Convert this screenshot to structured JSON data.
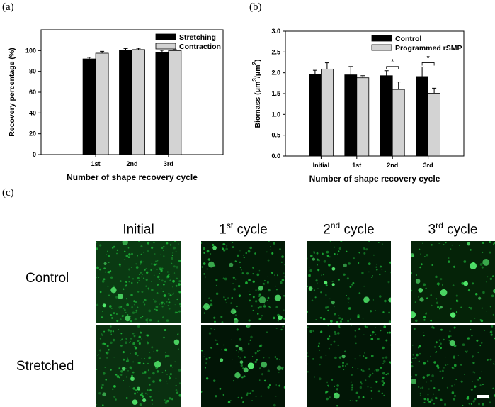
{
  "panels": {
    "a": "(a)",
    "b": "(b)",
    "c": "(c)"
  },
  "chart_data": [
    {
      "type": "bar",
      "title": "",
      "xlabel": "Number of shape recovery cycle",
      "ylabel": "Recovery percentage (%)",
      "ylim": [
        0,
        120
      ],
      "yticks": [
        "0",
        "20",
        "40",
        "60",
        "80",
        "100"
      ],
      "categories": [
        "1st",
        "2nd",
        "3rd"
      ],
      "legend_position": "top-right",
      "series": [
        {
          "name": "Stretching",
          "color": "#000000",
          "values": [
            92,
            100.5,
            98.5
          ],
          "errors": [
            1.5,
            1.5,
            1.8
          ]
        },
        {
          "name": "Contraction",
          "color": "#d3d3d3",
          "values": [
            97.5,
            101,
            100
          ],
          "errors": [
            1.8,
            1.2,
            0.8
          ]
        }
      ]
    },
    {
      "type": "bar",
      "title": "",
      "xlabel": "Number of shape recovery cycle",
      "ylabel_main": "Biomass (μm",
      "ylabel_sup1": "3",
      "ylabel_mid": "/μm",
      "ylabel_sup2": "2",
      "ylabel_end": ")",
      "ylim": [
        0,
        3.0
      ],
      "yticks": [
        "0.0",
        "0.5",
        "1.0",
        "1.5",
        "2.0",
        "2.5",
        "3.0"
      ],
      "categories": [
        "Initial",
        "1st",
        "2nd",
        "3rd"
      ],
      "legend_position": "top-right",
      "series": [
        {
          "name": "Control",
          "color": "#000000",
          "values": [
            1.97,
            1.95,
            1.93,
            1.91
          ],
          "errors": [
            0.09,
            0.2,
            0.12,
            0.23
          ]
        },
        {
          "name": "Programmed rSMP",
          "color": "#d3d3d3",
          "values": [
            2.09,
            1.88,
            1.6,
            1.51
          ],
          "errors": [
            0.15,
            0.05,
            0.18,
            0.12
          ]
        }
      ],
      "significance": [
        {
          "category": "2nd",
          "label": "*"
        },
        {
          "category": "3rd",
          "label": "*"
        }
      ]
    }
  ],
  "micrographs": {
    "columns": [
      {
        "main": "Initial",
        "sup": "",
        "rest": ""
      },
      {
        "main": "1",
        "sup": "st",
        "rest": " cycle"
      },
      {
        "main": "2",
        "sup": "nd",
        "rest": " cycle"
      },
      {
        "main": "3",
        "sup": "rd",
        "rest": " cycle"
      }
    ],
    "rows": [
      "Control",
      "Stretched"
    ],
    "color": "#1fbf3c"
  }
}
